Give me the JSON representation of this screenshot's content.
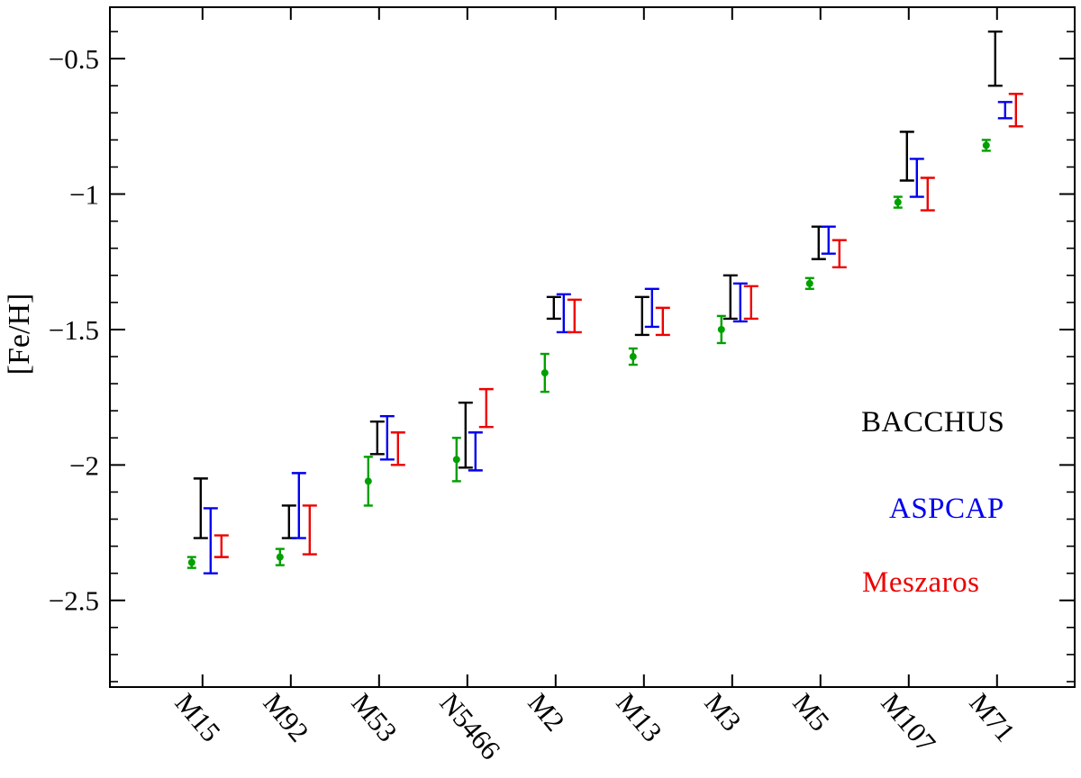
{
  "figure": {
    "background": "#ffffff"
  },
  "legend": [
    {
      "label": "BACCHUS",
      "color": "#000000"
    },
    {
      "label": "ASPCAP",
      "color": "#0000ee"
    },
    {
      "label": "Meszaros",
      "color": "#ee0000"
    }
  ],
  "chart_data": {
    "type": "scatter",
    "title": "",
    "xlabel": "",
    "ylabel": "[Fe/H]",
    "ylim": [
      -2.82,
      -0.31
    ],
    "y_minor_step": 0.1,
    "grid": false,
    "legend_position": "right-middle",
    "yticks": [
      {
        "label": "−0.5",
        "value": -0.5
      },
      {
        "label": "−1",
        "value": -1.0
      },
      {
        "label": "−1.5",
        "value": -1.5
      },
      {
        "label": "−2",
        "value": -2.0
      },
      {
        "label": "−2.5",
        "value": -2.5
      }
    ],
    "categories": [
      "M15",
      "M92",
      "M53",
      "N5466",
      "M2",
      "M13",
      "M3",
      "M5",
      "M107",
      "M71"
    ],
    "series": [
      {
        "name": "BACCHUS",
        "color": "#000000",
        "style": "errorbar",
        "x_offset": -2,
        "cap": 8,
        "marker": false,
        "points": [
          {
            "y": -2.16,
            "err": 0.11
          },
          {
            "y": -2.21,
            "err": 0.06
          },
          {
            "y": -1.9,
            "err": 0.06
          },
          {
            "y": -1.89,
            "err": 0.12
          },
          {
            "y": -1.42,
            "err": 0.04
          },
          {
            "y": -1.45,
            "err": 0.07
          },
          {
            "y": -1.38,
            "err": 0.08
          },
          {
            "y": -1.18,
            "err": 0.06
          },
          {
            "y": -0.86,
            "err": 0.09
          },
          {
            "y": -0.5,
            "err": 0.1
          }
        ]
      },
      {
        "name": "ASPCAP",
        "color": "#0000ee",
        "style": "errorbar",
        "x_offset": 9,
        "cap": 8,
        "marker": false,
        "points": [
          {
            "y": -2.28,
            "err": 0.12
          },
          {
            "y": -2.15,
            "err": 0.12
          },
          {
            "y": -1.9,
            "err": 0.08
          },
          {
            "y": -1.95,
            "err": 0.07
          },
          {
            "y": -1.44,
            "err": 0.07
          },
          {
            "y": -1.42,
            "err": 0.07
          },
          {
            "y": -1.4,
            "err": 0.07
          },
          {
            "y": -1.17,
            "err": 0.05
          },
          {
            "y": -0.94,
            "err": 0.07
          },
          {
            "y": -0.69,
            "err": 0.03
          }
        ]
      },
      {
        "name": "Meszaros",
        "color": "#ee0000",
        "style": "errorbar",
        "x_offset": 21,
        "cap": 8,
        "marker": false,
        "points": [
          {
            "y": -2.3,
            "err": 0.04
          },
          {
            "y": -2.24,
            "err": 0.09
          },
          {
            "y": -1.94,
            "err": 0.06
          },
          {
            "y": -1.79,
            "err": 0.07
          },
          {
            "y": -1.45,
            "err": 0.06
          },
          {
            "y": -1.47,
            "err": 0.05
          },
          {
            "y": -1.4,
            "err": 0.06
          },
          {
            "y": -1.22,
            "err": 0.05
          },
          {
            "y": -1.0,
            "err": 0.06
          },
          {
            "y": -0.69,
            "err": 0.06
          }
        ]
      },
      {
        "name": "",
        "color": "#00a000",
        "style": "errorbar",
        "x_offset": -12,
        "cap": 5,
        "marker": true,
        "points": [
          {
            "y": -2.36,
            "err": 0.02
          },
          {
            "y": -2.34,
            "err": 0.03
          },
          {
            "y": -2.06,
            "err": 0.09
          },
          {
            "y": -1.98,
            "err": 0.08
          },
          {
            "y": -1.66,
            "err": 0.07
          },
          {
            "y": -1.6,
            "err": 0.03
          },
          {
            "y": -1.5,
            "err": 0.05
          },
          {
            "y": -1.33,
            "err": 0.02
          },
          {
            "y": -1.03,
            "err": 0.02
          },
          {
            "y": -0.82,
            "err": 0.02
          }
        ]
      }
    ]
  }
}
